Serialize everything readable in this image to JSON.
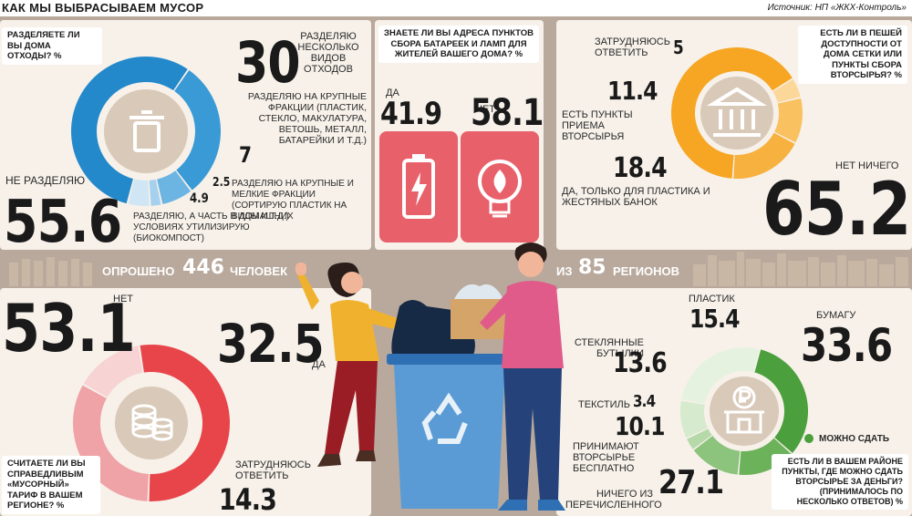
{
  "header": {
    "title": "КАК МЫ ВЫБРАСЫВАЕМ МУСОР",
    "source": "Источник: НП «ЖКХ-Контроль»"
  },
  "colors": {
    "blue": "#2389cb",
    "orange": "#f6a623",
    "red": "#e8454b",
    "green": "#4b9f3c",
    "pink_tile": "#e8606a",
    "panel": "#f7f1ea",
    "background": "#b8a99c"
  },
  "separation": {
    "question": "РАЗДЕЛЯЕТЕ ЛИ ВЫ ДОМА ОТХОДЫ? %",
    "icon": "trash-bin-icon",
    "items": [
      {
        "label": "НЕ РАЗДЕЛЯЮ",
        "value": "55.6"
      },
      {
        "label": "РАЗДЕЛЯЮ НЕСКОЛЬКО ВИДОВ ОТХОДОВ",
        "value": "30"
      },
      {
        "label": "РАЗДЕЛЯЮ НА КРУПНЫЕ ФРАКЦИИ (ПЛАСТИК, СТЕКЛО, МАКУЛАТУРА, ВЕТОШЬ, МЕТАЛЛ, БАТАРЕЙКИ И Т.Д.)",
        "value": "7"
      },
      {
        "label": "РАЗДЕЛЯЮ НА КРУПНЫЕ И МЕЛКИЕ ФРАКЦИИ (СОРТИРУЮ ПЛАСТИК НА ВИДЫ И Т.Д.)",
        "value": "2.5"
      },
      {
        "label": "РАЗДЕЛЯЮ, А ЧАСТЬ В ДОМАШНИХ УСЛОВИЯХ УТИЛИЗИРУЮ (БИОКОМПОСТ)",
        "value": "4.9"
      }
    ]
  },
  "addresses": {
    "question": "ЗНАЕТЕ ЛИ ВЫ АДРЕСА ПУНКТОВ СБОРА БАТАРЕЕК И ЛАМП ДЛЯ ЖИТЕЛЕЙ ВАШЕГО ДОМА? %",
    "yes_label": "ДА",
    "yes_value": "41.9",
    "no_label": "НЕТ",
    "no_value": "58.1",
    "icons": [
      "battery-icon",
      "lightbulb-icon"
    ]
  },
  "access": {
    "question": "ЕСТЬ ЛИ В ПЕШЕЙ ДОСТУПНОСТИ ОТ ДОМА СЕТКИ ИЛИ ПУНКТЫ СБОРА ВТОРСЫРЬЯ? %",
    "icon": "building-icon",
    "items": [
      {
        "label": "НЕТ НИЧЕГО",
        "value": "65.2"
      },
      {
        "label": "ЗАТРУДНЯЮСЬ ОТВЕТИТЬ",
        "value": "5"
      },
      {
        "label": "ЕСТЬ ПУНКТЫ ПРИЕМА ВТОРСЫРЬЯ",
        "value": "11.4"
      },
      {
        "label": "ДА, ТОЛЬКО ДЛЯ ПЛАСТИКА И ЖЕСТЯНЫХ БАНОК",
        "value": "18.4"
      }
    ]
  },
  "survey": {
    "surveyed_label": "ОПРОШЕНО",
    "surveyed_value": "446",
    "people_label": "ЧЕЛОВЕК",
    "from_label": "ИЗ",
    "regions_value": "85",
    "regions_label": "РЕГИОНОВ"
  },
  "tariff": {
    "question": "СЧИТАЕТЕ ЛИ ВЫ СПРАВЕДЛИВЫМ «МУСОРНЫЙ» ТАРИФ В ВАШЕМ РЕГИОНЕ? %",
    "icon": "coins-icon",
    "items": [
      {
        "label": "НЕТ",
        "value": "53.1"
      },
      {
        "label": "ДА",
        "value": "32.5"
      },
      {
        "label": "ЗАТРУДНЯЮСЬ ОТВЕТИТЬ",
        "value": "14.3"
      }
    ]
  },
  "money": {
    "question": "ЕСТЬ ЛИ В ВАШЕМ РАЙОНЕ ПУНКТЫ, ГДЕ МОЖНО СДАТЬ ВТОРСЫРЬЕ ЗА ДЕНЬГИ? (ПРИНИМАЛОСЬ ПО НЕСКОЛЬКО ОТВЕТОВ) %",
    "legend": "МОЖНО СДАТЬ",
    "icon": "ruble-shop-icon",
    "items": [
      {
        "label": "БУМАГУ",
        "value": "33.6"
      },
      {
        "label": "ПЛАСТИК",
        "value": "15.4"
      },
      {
        "label": "СТЕКЛЯННЫЕ БУТЫЛКИ",
        "value": "13.6"
      },
      {
        "label": "ТЕКСТИЛЬ",
        "value": "3.4"
      },
      {
        "label": "ПРИНИМАЮТ ВТОРСЫРЬЕ БЕСПЛАТНО",
        "value": "10.1"
      },
      {
        "label": "НИЧЕГО ИЗ ПЕРЕЧИСЛЕННОГО",
        "value": "27.1"
      }
    ]
  },
  "chart_data": [
    {
      "type": "pie",
      "title": "РАЗДЕЛЯЕТЕ ЛИ ВЫ ДОМА ОТХОДЫ? %",
      "categories": [
        "НЕ РАЗДЕЛЯЮ",
        "РАЗДЕЛЯЮ НЕСКОЛЬКО ВИДОВ ОТХОДОВ",
        "РАЗДЕЛЯЮ НА КРУПНЫЕ ФРАКЦИИ",
        "РАЗДЕЛЯЮ НА КРУПНЫЕ И МЕЛКИЕ ФРАКЦИИ",
        "РАЗДЕЛЯЮ, А ЧАСТЬ УТИЛИЗИРУЮ"
      ],
      "values": [
        55.6,
        30,
        7,
        2.5,
        4.9
      ]
    },
    {
      "type": "bar",
      "title": "ЗНАЕТЕ ЛИ ВЫ АДРЕСА ПУНКТОВ СБОРА БАТАРЕЕК И ЛАМП ДЛЯ ЖИТЕЛЕЙ ВАШЕГО ДОМА? %",
      "categories": [
        "ДА",
        "НЕТ"
      ],
      "values": [
        41.9,
        58.1
      ]
    },
    {
      "type": "pie",
      "title": "ЕСТЬ ЛИ В ПЕШЕЙ ДОСТУПНОСТИ ОТ ДОМА СЕТКИ ИЛИ ПУНКТЫ СБОРА ВТОРСЫРЬЯ? %",
      "categories": [
        "НЕТ НИЧЕГО",
        "ЗАТРУДНЯЮСЬ ОТВЕТИТЬ",
        "ЕСТЬ ПУНКТЫ ПРИЕМА ВТОРСЫРЬЯ",
        "ДА, ТОЛЬКО ДЛЯ ПЛАСТИКА И ЖЕСТЯНЫХ БАНОК"
      ],
      "values": [
        65.2,
        5,
        11.4,
        18.4
      ]
    },
    {
      "type": "pie",
      "title": "СЧИТАЕТЕ ЛИ ВЫ СПРАВЕДЛИВЫМ «МУСОРНЫЙ» ТАРИФ В ВАШЕМ РЕГИОНЕ? %",
      "categories": [
        "НЕТ",
        "ДА",
        "ЗАТРУДНЯЮСЬ ОТВЕТИТЬ"
      ],
      "values": [
        53.1,
        32.5,
        14.3
      ]
    },
    {
      "type": "pie",
      "title": "ЕСТЬ ЛИ В ВАШЕМ РАЙОНЕ ПУНКТЫ, ГДЕ МОЖНО СДАТЬ ВТОРСЫРЬЕ ЗА ДЕНЬГИ? %",
      "categories": [
        "БУМАГУ",
        "ПЛАСТИК",
        "СТЕКЛЯННЫЕ БУТЫЛКИ",
        "ТЕКСТИЛЬ",
        "ПРИНИМАЮТ ВТОРСЫРЬЕ БЕСПЛАТНО",
        "НИЧЕГО ИЗ ПЕРЕЧИСЛЕННОГО"
      ],
      "values": [
        33.6,
        15.4,
        13.6,
        3.4,
        10.1,
        27.1
      ]
    }
  ]
}
